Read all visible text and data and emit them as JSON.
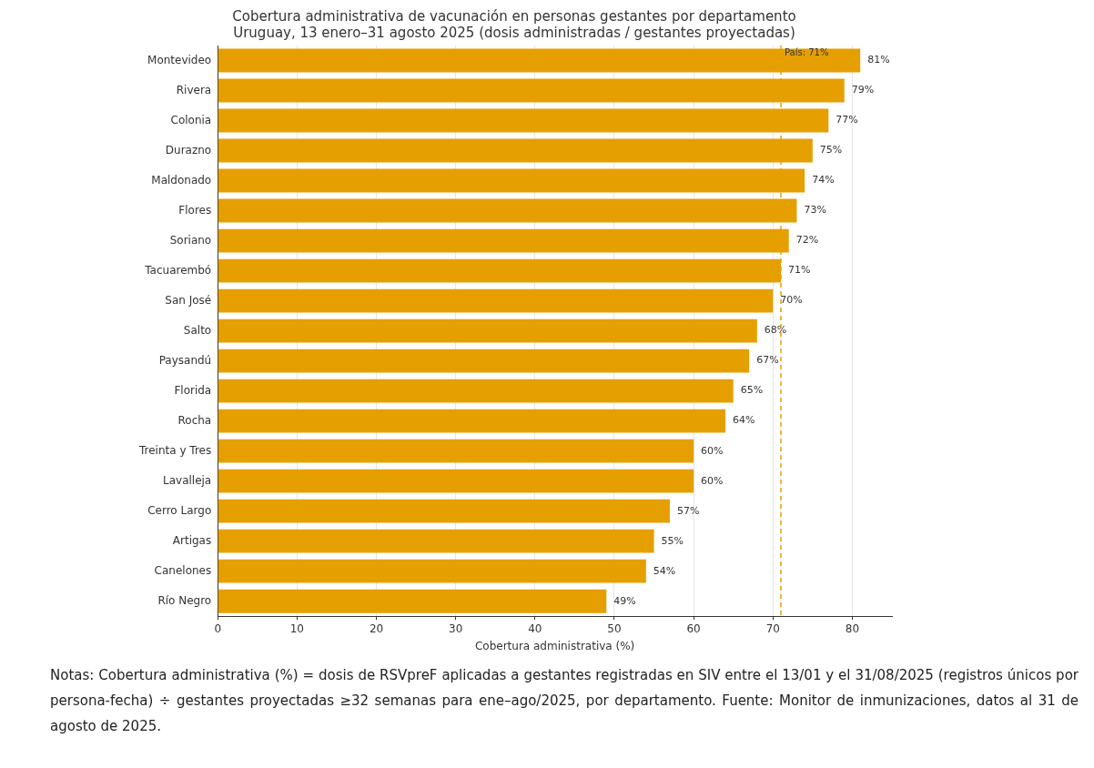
{
  "chart_data": {
    "type": "bar",
    "orientation": "horizontal",
    "title": "Cobertura administrativa de vacunación en personas gestantes por departamento\nUruguay, 13 enero–31 agosto 2025 (dosis administradas / gestantes proyectadas)",
    "xlabel": "Cobertura administrativa (%)",
    "categories": [
      "Montevideo",
      "Rivera",
      "Colonia",
      "Durazno",
      "Maldonado",
      "Flores",
      "Soriano",
      "Tacuarembó",
      "San José",
      "Salto",
      "Paysandú",
      "Florida",
      "Rocha",
      "Treinta y Tres",
      "Lavalleja",
      "Cerro Largo",
      "Artigas",
      "Canelones",
      "Río Negro"
    ],
    "values": [
      81,
      79,
      77,
      75,
      74,
      73,
      72,
      71,
      70,
      68,
      67,
      65,
      64,
      60,
      60,
      57,
      55,
      54,
      49
    ],
    "value_labels": [
      "81%",
      "79%",
      "77%",
      "75%",
      "74%",
      "73%",
      "72%",
      "71%",
      "70%",
      "68%",
      "67%",
      "65%",
      "64%",
      "60%",
      "60%",
      "57%",
      "55%",
      "54%",
      "49%"
    ],
    "color": "#e69f00",
    "xlim": [
      0,
      85
    ],
    "xticks": [
      0,
      10,
      20,
      30,
      40,
      50,
      60,
      70,
      80
    ],
    "grid": "x",
    "ref_lines": [
      {
        "axis": "x",
        "value": 71,
        "label": "País: 71%",
        "color": "#e69f00",
        "line_style": "dashed"
      }
    ],
    "annotations": [
      "Notas: Cobertura administrativa (%) = dosis de RSVpreF aplicadas a gestantes registradas en SIV entre el 13/01 y el 31/08/2025 (registros únicos por persona-fecha) ÷ gestantes proyectadas ≥32 semanas para ene–ago/2025, por departamento. Fuente: Monitor de inmunizaciones, datos al 31 de agosto de 2025."
    ]
  }
}
